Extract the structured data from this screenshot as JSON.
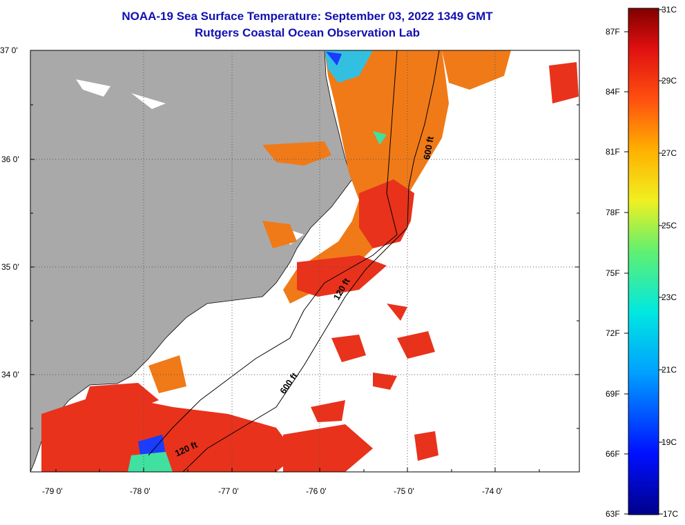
{
  "title": "NOAA-19 Sea Surface Temperature:  September 03, 2022 1349 GMT",
  "subtitle": "Rutgers Coastal Ocean Observation Lab",
  "lat_labels": [
    "37 0'",
    "36 0'",
    "35 0'",
    "34 0'"
  ],
  "lon_labels": [
    "-79 0'",
    "-78 0'",
    "-77 0'",
    "-76 0'",
    "-75 0'",
    "-74 0'"
  ],
  "contour_labels": [
    "600 ft",
    "120 ft",
    "600 ft",
    "120 ft"
  ],
  "colorbar": {
    "celsius_labels": [
      "31C",
      "29C",
      "27C",
      "25C",
      "23C",
      "21C",
      "19C",
      "17C"
    ],
    "fahrenheit_labels": [
      "87F",
      "84F",
      "81F",
      "78F",
      "75F",
      "72F",
      "69F",
      "66F",
      "63F"
    ],
    "min_c": 17,
    "max_c": 31
  },
  "colors": {
    "land": "#a9a9a9",
    "title": "#1010b0",
    "warm": "#e8321c",
    "orange": "#f07a18",
    "cold": "#1a3cff"
  }
}
